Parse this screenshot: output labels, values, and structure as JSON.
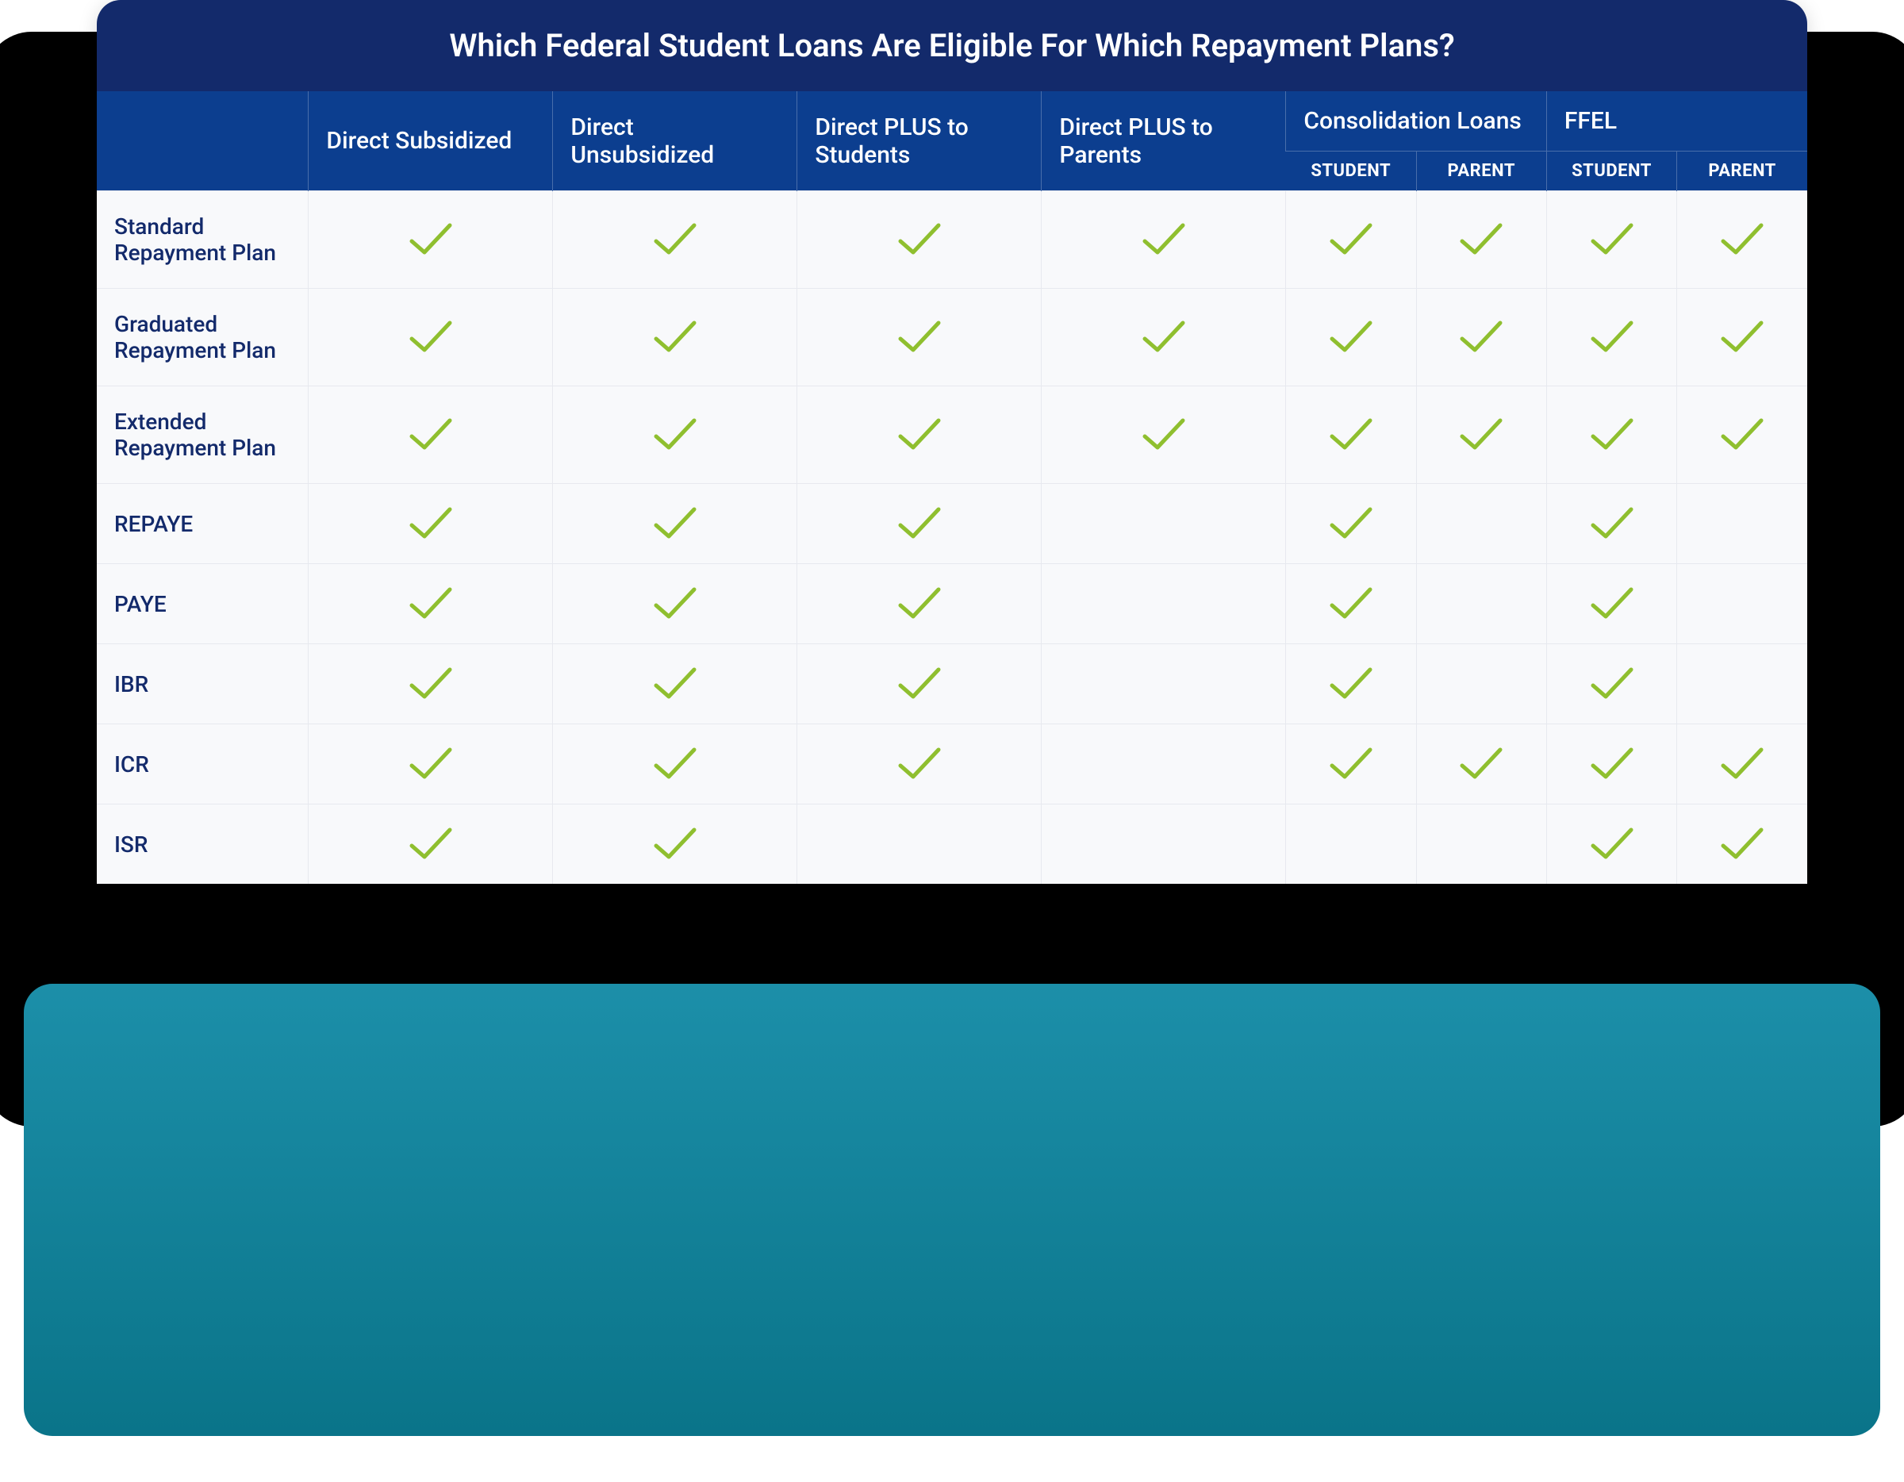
{
  "colors": {
    "title_bg": "#132a6b",
    "header_bg": "#0c3e8f",
    "header_text": "#ffffff",
    "rowhead_text": "#132a6b",
    "body_bg": "#f8f9fb",
    "row_border": "#e7e9ef",
    "check": "#8fbf2f",
    "layer_black": "#000000",
    "layer_teal_start": "#1c8fa9",
    "layer_teal_end": "#0a7489"
  },
  "fontsizes": {
    "title": 40,
    "header": 30,
    "subheader": 22,
    "rowhead": 28
  },
  "title": "Which Federal Student Loans Are Eligible For Which Repayment Plans?",
  "columns_top": [
    {
      "key": "direct_sub",
      "label": "Direct Subsidized",
      "span": 1
    },
    {
      "key": "direct_unsub",
      "label": "Direct Unsubsidized",
      "span": 1
    },
    {
      "key": "plus_student",
      "label": "Direct PLUS to Students",
      "span": 1
    },
    {
      "key": "plus_parent",
      "label": "Direct PLUS to Parents",
      "span": 1
    },
    {
      "key": "consol",
      "label": "Consolidation Loans",
      "span": 2,
      "subs": [
        "STUDENT",
        "PARENT"
      ]
    },
    {
      "key": "ffel",
      "label": "FFEL",
      "span": 2,
      "subs": [
        "STUDENT",
        "PARENT"
      ]
    }
  ],
  "data_columns": [
    "direct_sub",
    "direct_unsub",
    "plus_student",
    "plus_parent",
    "consol_student",
    "consol_parent",
    "ffel_student",
    "ffel_parent"
  ],
  "rows": [
    {
      "label": "Standard Repayment Plan",
      "cells": [
        true,
        true,
        true,
        true,
        true,
        true,
        true,
        true
      ]
    },
    {
      "label": "Graduated Repayment Plan",
      "cells": [
        true,
        true,
        true,
        true,
        true,
        true,
        true,
        true
      ]
    },
    {
      "label": "Extended Repayment Plan",
      "cells": [
        true,
        true,
        true,
        true,
        true,
        true,
        true,
        true
      ]
    },
    {
      "label": "REPAYE",
      "cells": [
        true,
        true,
        true,
        false,
        true,
        false,
        true,
        false
      ]
    },
    {
      "label": "PAYE",
      "cells": [
        true,
        true,
        true,
        false,
        true,
        false,
        true,
        false
      ]
    },
    {
      "label": "IBR",
      "cells": [
        true,
        true,
        true,
        false,
        true,
        false,
        true,
        false
      ]
    },
    {
      "label": "ICR",
      "cells": [
        true,
        true,
        true,
        false,
        true,
        true,
        true,
        true
      ]
    },
    {
      "label": "ISR",
      "cells": [
        true,
        true,
        false,
        false,
        false,
        false,
        true,
        true
      ]
    }
  ]
}
